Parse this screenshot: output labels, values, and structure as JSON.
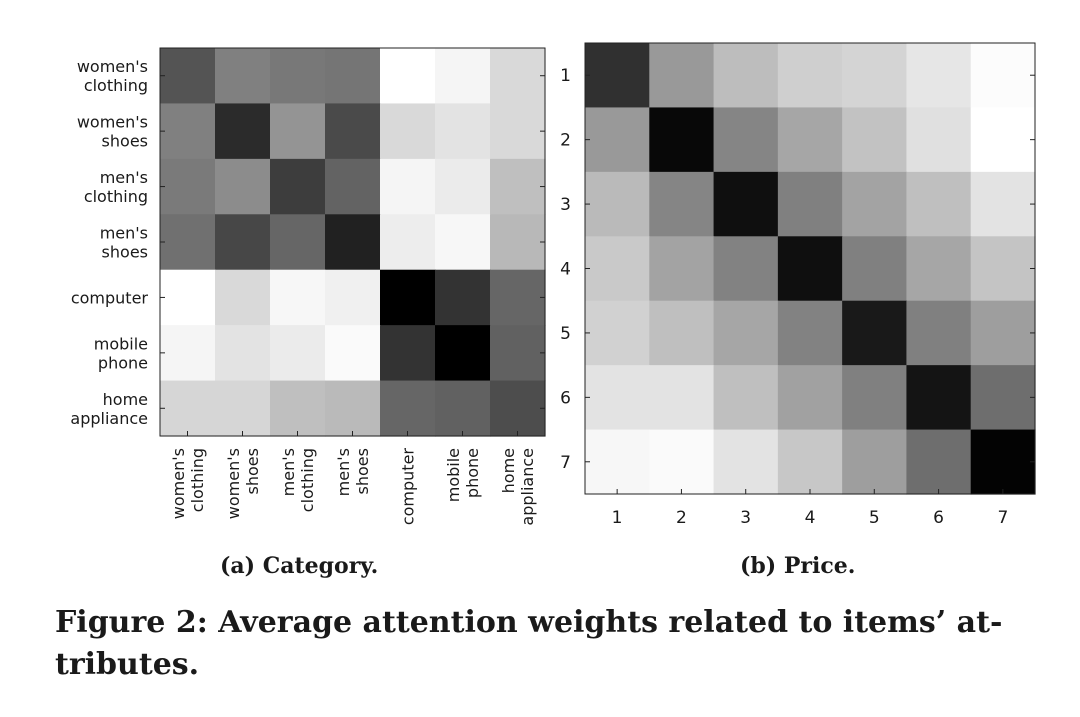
{
  "figure_caption": "Figure 2:  Average attention weights related to items’ at-tributes.",
  "figure_caption_lines": [
    "Figure 2:  Average attention weights related to items’ at-",
    "tributes."
  ],
  "chart_data": [
    {
      "type": "heatmap",
      "caption": "(a) Category.",
      "x_labels": [
        [
          "women's",
          "clothing"
        ],
        [
          "women's",
          "shoes"
        ],
        [
          "men's",
          "clothing"
        ],
        [
          "men's",
          "shoes"
        ],
        [
          "computer"
        ],
        [
          "mobile",
          "phone"
        ],
        [
          "home",
          "appliance"
        ]
      ],
      "y_labels": [
        [
          "women's",
          "clothing"
        ],
        [
          "women's",
          "shoes"
        ],
        [
          "men's",
          "clothing"
        ],
        [
          "men's",
          "shoes"
        ],
        [
          "computer"
        ],
        [
          "mobile",
          "phone"
        ],
        [
          "home",
          "appliance"
        ]
      ],
      "colormap": "grayscale (darker = higher weight)",
      "values": [
        [
          0.67,
          0.5,
          0.53,
          0.54,
          0.0,
          0.04,
          0.15
        ],
        [
          0.5,
          0.83,
          0.42,
          0.71,
          0.15,
          0.11,
          0.15
        ],
        [
          0.52,
          0.45,
          0.76,
          0.61,
          0.04,
          0.08,
          0.25
        ],
        [
          0.56,
          0.72,
          0.6,
          0.87,
          0.07,
          0.03,
          0.28
        ],
        [
          0.0,
          0.15,
          0.03,
          0.06,
          1.0,
          0.8,
          0.6
        ],
        [
          0.04,
          0.11,
          0.08,
          0.02,
          0.8,
          1.0,
          0.62
        ],
        [
          0.16,
          0.16,
          0.25,
          0.27,
          0.6,
          0.62,
          0.7
        ]
      ]
    },
    {
      "type": "heatmap",
      "caption": "(b) Price.",
      "x_labels": [
        "1",
        "2",
        "3",
        "4",
        "5",
        "6",
        "7"
      ],
      "y_labels": [
        "1",
        "2",
        "3",
        "4",
        "5",
        "6",
        "7"
      ],
      "colormap": "grayscale (darker = higher weight)",
      "values": [
        [
          0.81,
          0.4,
          0.26,
          0.19,
          0.17,
          0.1,
          0.01
        ],
        [
          0.4,
          0.97,
          0.48,
          0.35,
          0.24,
          0.12,
          0.0
        ],
        [
          0.27,
          0.48,
          0.94,
          0.5,
          0.36,
          0.25,
          0.11
        ],
        [
          0.21,
          0.36,
          0.49,
          0.94,
          0.5,
          0.35,
          0.23
        ],
        [
          0.18,
          0.25,
          0.35,
          0.49,
          0.9,
          0.5,
          0.38
        ],
        [
          0.11,
          0.11,
          0.25,
          0.37,
          0.5,
          0.92,
          0.57
        ],
        [
          0.03,
          0.02,
          0.11,
          0.22,
          0.38,
          0.57,
          0.99
        ]
      ]
    }
  ]
}
